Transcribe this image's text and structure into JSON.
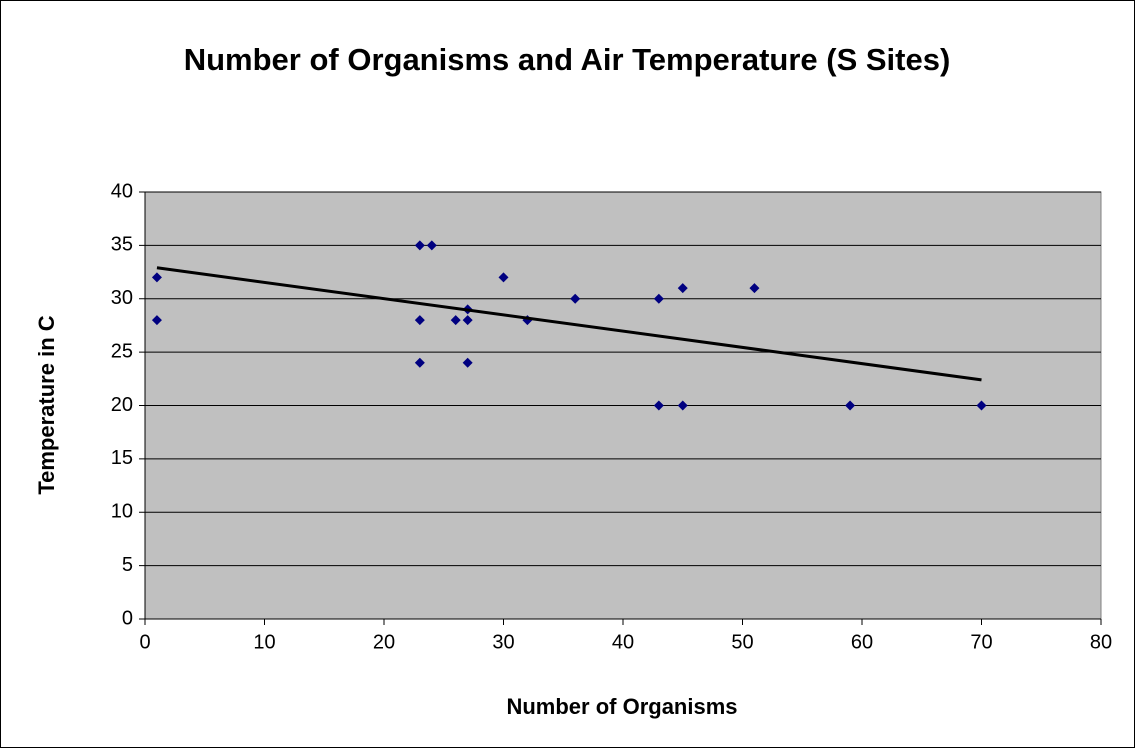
{
  "chart_data": {
    "type": "scatter",
    "title": "Number of Organisms and Air Temperature (S Sites)",
    "xlabel": "Number of Organisms",
    "ylabel": "Temperature in C",
    "x": [
      1,
      1,
      23,
      24,
      23,
      23,
      26,
      27,
      27,
      27,
      30,
      32,
      36,
      43,
      45,
      51,
      43,
      45,
      59,
      70
    ],
    "values": [
      32,
      28,
      35,
      35,
      28,
      24,
      28,
      29,
      28,
      24,
      32,
      28,
      30,
      30,
      31,
      31,
      20,
      20,
      20,
      20
    ],
    "color": "#000080",
    "trendline": {
      "x": [
        1,
        70
      ],
      "y": [
        32.9,
        22.4
      ],
      "color": "#000000"
    },
    "xlim": [
      0,
      80
    ],
    "xticks": [
      0,
      10,
      20,
      30,
      40,
      50,
      60,
      70,
      80
    ],
    "ylim": [
      0,
      40
    ],
    "yticks": [
      0,
      5,
      10,
      15,
      20,
      25,
      30,
      35,
      40
    ],
    "grid": true
  }
}
